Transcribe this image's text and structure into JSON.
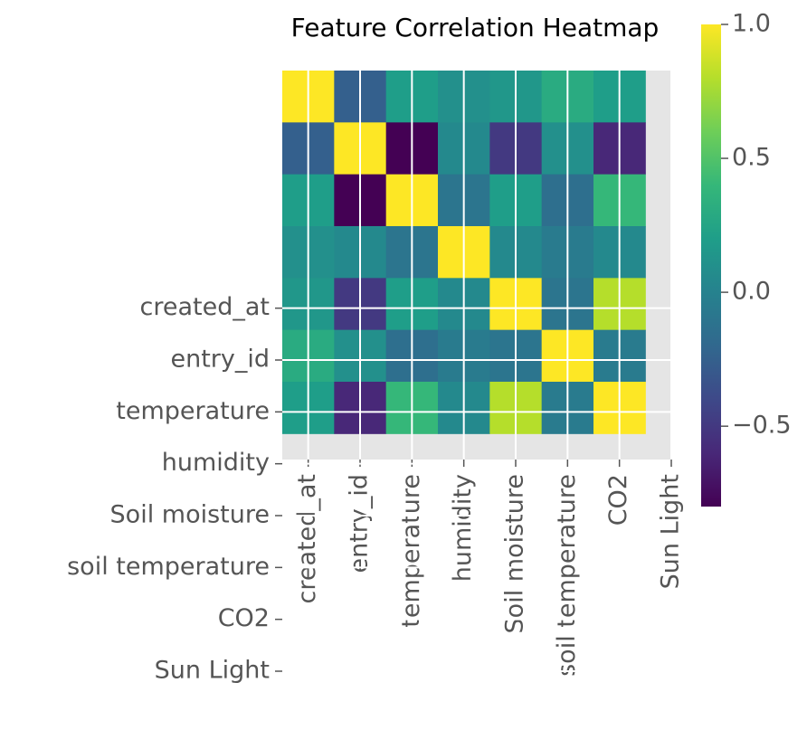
{
  "chart_data": {
    "type": "heatmap",
    "title": "Feature Correlation Heatmap",
    "categories": [
      "created_at",
      "entry_id",
      "temperature",
      "humidity",
      "Soil moisture",
      "soil temperature",
      "CO2",
      "Sun Light"
    ],
    "values": [
      [
        1.0,
        -0.25,
        0.2,
        0.1,
        0.15,
        0.3,
        0.2,
        null
      ],
      [
        -0.25,
        1.0,
        -0.8,
        0.05,
        -0.5,
        0.1,
        -0.6,
        null
      ],
      [
        0.2,
        -0.8,
        1.0,
        -0.1,
        0.2,
        -0.15,
        0.4,
        null
      ],
      [
        0.1,
        0.05,
        -0.1,
        1.0,
        0.05,
        -0.05,
        0.05,
        null
      ],
      [
        0.15,
        -0.5,
        0.2,
        0.05,
        1.0,
        -0.1,
        0.8,
        null
      ],
      [
        0.3,
        0.1,
        -0.15,
        -0.05,
        -0.1,
        1.0,
        -0.05,
        null
      ],
      [
        0.2,
        -0.6,
        0.4,
        0.05,
        0.8,
        -0.05,
        1.0,
        null
      ],
      [
        null,
        null,
        null,
        null,
        null,
        null,
        null,
        null
      ]
    ],
    "colormap": "viridis",
    "clim": [
      -0.8,
      1.0
    ],
    "cticks": [
      {
        "value": 1.0,
        "label": "1.0"
      },
      {
        "value": 0.5,
        "label": "0.5"
      },
      {
        "value": 0.0,
        "label": "0.0"
      },
      {
        "value": -0.5,
        "label": "−0.5"
      }
    ],
    "grid": true
  }
}
